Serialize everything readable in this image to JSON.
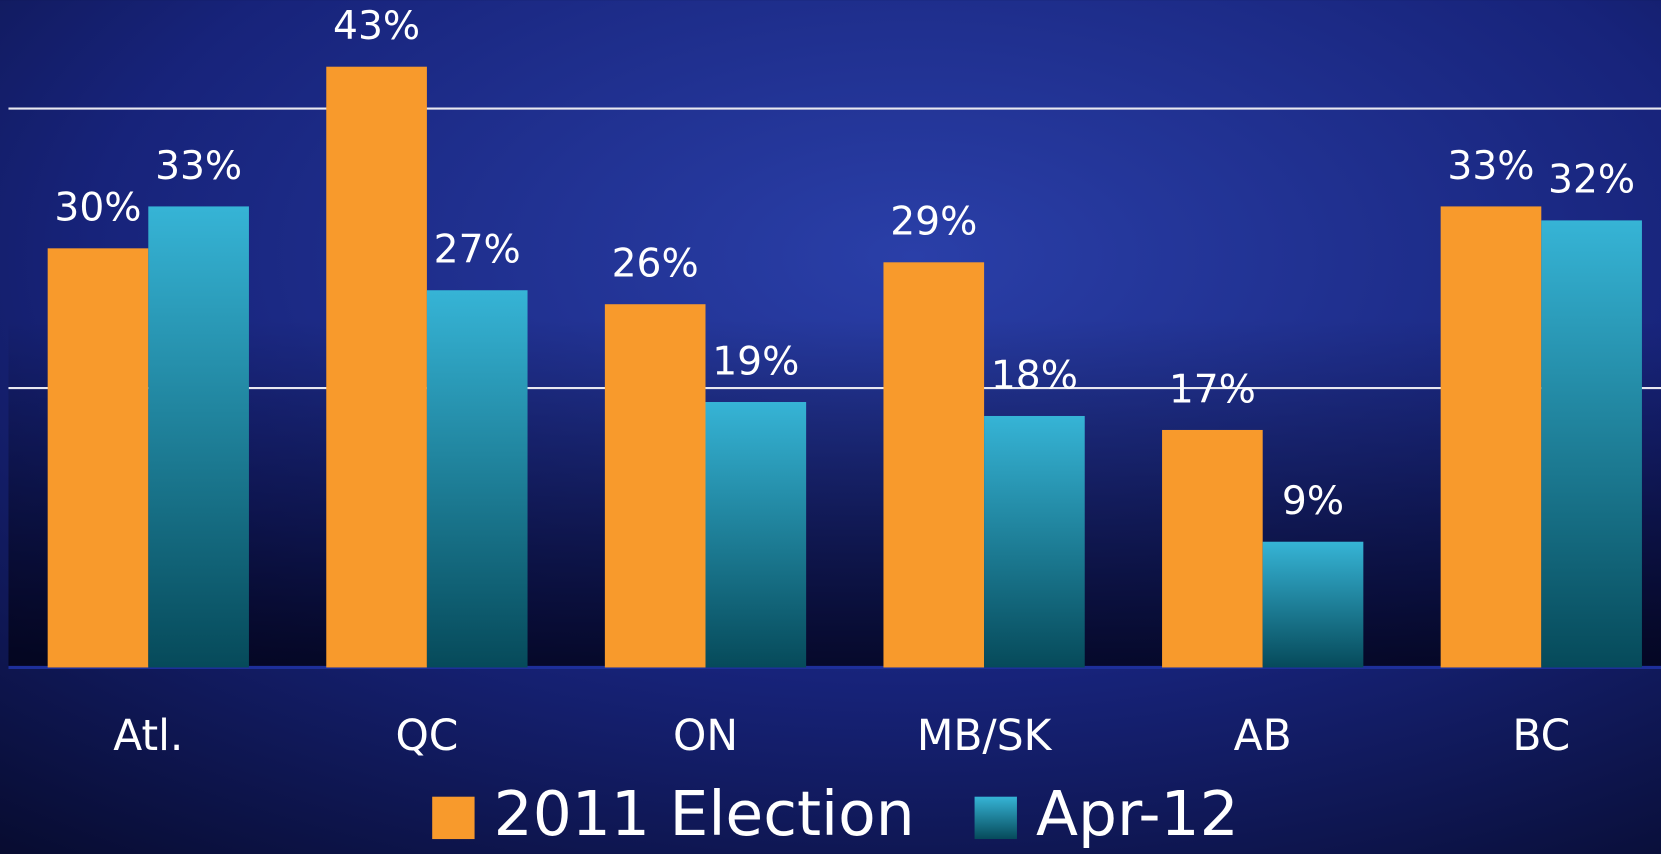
{
  "chart_data": {
    "type": "bar",
    "categories": [
      "Atl.",
      "QC",
      "ON",
      "MB/SK",
      "AB",
      "BC"
    ],
    "series": [
      {
        "name": "2011 Election",
        "color": "#f89a2c",
        "values": [
          30,
          43,
          26,
          29,
          17,
          33
        ],
        "value_labels": [
          "30%",
          "43%",
          "26%",
          "29%",
          "17%",
          "33%"
        ]
      },
      {
        "name": "Apr-12",
        "color": "#2aa3c4",
        "values": [
          33,
          27,
          19,
          18,
          9,
          32
        ],
        "value_labels": [
          "33%",
          "27%",
          "19%",
          "18%",
          "9%",
          "32%"
        ]
      }
    ],
    "ylim": [
      0,
      45
    ],
    "yticks": [
      20,
      40
    ],
    "grid": true
  }
}
